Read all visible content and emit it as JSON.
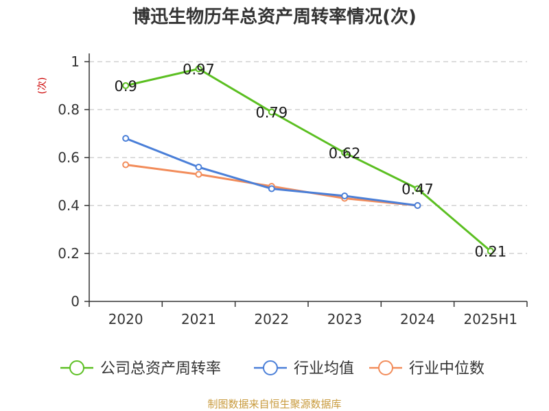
{
  "chart_data": {
    "type": "line",
    "title": "博迅生物历年总资产周转率情况(次)",
    "ylabel": "(次)",
    "categories": [
      "2020",
      "2021",
      "2022",
      "2023",
      "2024",
      "2025H1"
    ],
    "ylim": [
      0,
      1
    ],
    "yticks": [
      "0",
      "0.2",
      "0.4",
      "0.6",
      "0.8",
      "1"
    ],
    "grid": true,
    "legend_position": "bottom",
    "series": [
      {
        "name": "公司总资产周转率",
        "color": "#5bbf21",
        "values": [
          0.9,
          0.97,
          0.79,
          0.62,
          0.47,
          0.21
        ],
        "labels": [
          "0.9",
          "0.97",
          "0.79",
          "0.62",
          "0.47",
          "0.21"
        ]
      },
      {
        "name": "行业均值",
        "color": "#4a7fd8",
        "values": [
          0.68,
          0.56,
          0.47,
          0.44,
          0.4,
          null
        ]
      },
      {
        "name": "行业中位数",
        "color": "#f28c5a",
        "values": [
          0.57,
          0.53,
          0.48,
          0.43,
          0.4,
          null
        ]
      }
    ],
    "source": "制图数据来自恒生聚源数据库"
  }
}
